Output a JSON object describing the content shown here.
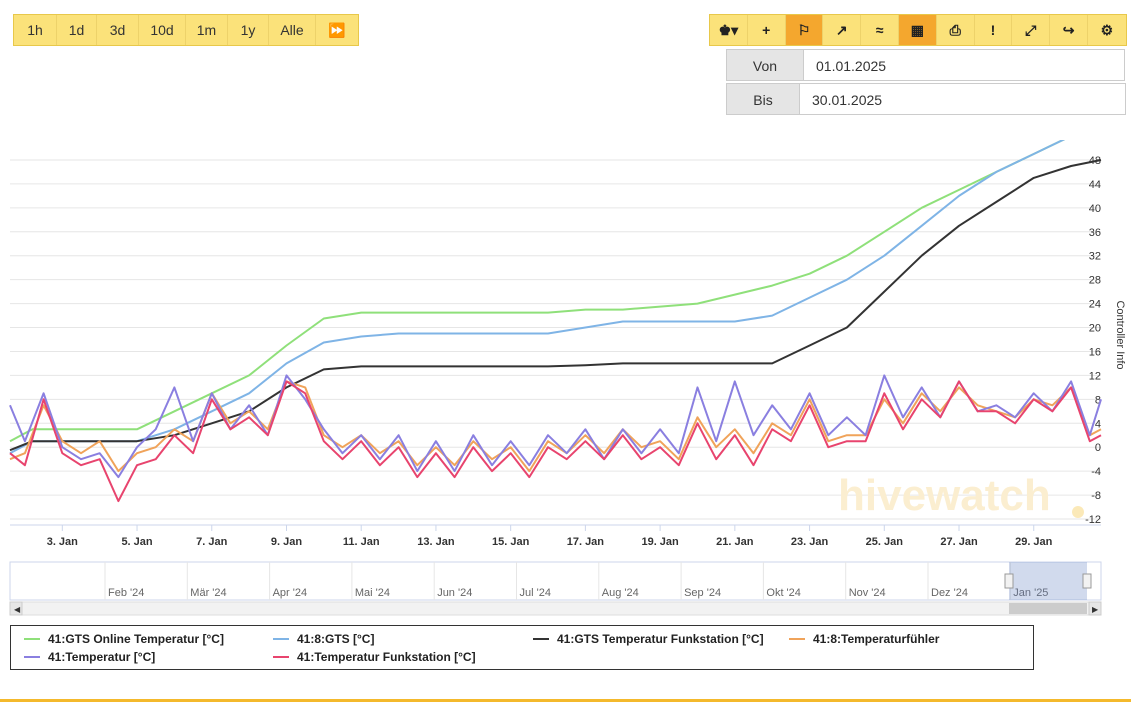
{
  "range_buttons": [
    "1h",
    "1d",
    "3d",
    "10d",
    "1m",
    "1y",
    "Alle"
  ],
  "range_play_icon": "⏩",
  "toolbar": [
    {
      "icon": "bee-menu-icon",
      "glyph": "♚▾",
      "active": false
    },
    {
      "icon": "plus-icon",
      "glyph": "+",
      "active": false
    },
    {
      "icon": "flag-icon",
      "glyph": "⚐",
      "active": true
    },
    {
      "icon": "line-chart-icon",
      "glyph": "↗",
      "active": false
    },
    {
      "icon": "multi-line-icon",
      "glyph": "≈",
      "active": false
    },
    {
      "icon": "calendar-icon",
      "glyph": "▦",
      "active": true
    },
    {
      "icon": "print-icon",
      "glyph": "⎙",
      "active": false
    },
    {
      "icon": "alert-icon",
      "glyph": "!",
      "active": false
    },
    {
      "icon": "fullscreen-icon",
      "glyph": "⤢",
      "active": false
    },
    {
      "icon": "share-icon",
      "glyph": "↪",
      "active": false
    },
    {
      "icon": "gear-icon",
      "glyph": "⚙",
      "active": false
    }
  ],
  "date_range": {
    "from_label": "Von",
    "from_value": "01.01.2025",
    "to_label": "Bis",
    "to_value": "30.01.2025"
  },
  "watermark": "hivewatch",
  "colors": {
    "green": "#8fe07a",
    "blue": "#7fb4e6",
    "black": "#333333",
    "orange": "#f0a35a",
    "purple": "#8a7fe0",
    "red": "#e8446e",
    "accent": "#f4a72e"
  },
  "chart_data": {
    "type": "line",
    "x_ticks": [
      "3. Jan",
      "5. Jan",
      "7. Jan",
      "9. Jan",
      "11. Jan",
      "13. Jan",
      "15. Jan",
      "17. Jan",
      "19. Jan",
      "21. Jan",
      "23. Jan",
      "25. Jan",
      "27. Jan",
      "29. Jan"
    ],
    "y_ticks": [
      -12,
      -8,
      -4,
      0,
      4,
      8,
      12,
      16,
      20,
      24,
      28,
      32,
      36,
      40,
      44,
      48
    ],
    "ylim": [
      -13,
      50
    ],
    "xlim": [
      1.6,
      30.8
    ],
    "right_axis_label": "Controller Info",
    "navigator_labels": [
      "Feb '24",
      "Mär '24",
      "Apr '24",
      "Mai '24",
      "Jun '24",
      "Jul '24",
      "Aug '24",
      "Sep '24",
      "Okt '24",
      "Nov '24",
      "Dez '24",
      "Jan '25"
    ],
    "series": [
      {
        "name": "41:GTS Online Temperatur [°C]",
        "color": "#8fe07a",
        "x": [
          1.6,
          2.2,
          3,
          4,
          5,
          6,
          7,
          8,
          9,
          10,
          11,
          12,
          13,
          14,
          15,
          16,
          17,
          18,
          19,
          20,
          21,
          22,
          23,
          24,
          25,
          26,
          27,
          28,
          29,
          30,
          30.8
        ],
        "y": [
          1,
          3,
          3,
          3,
          3,
          6,
          9,
          12,
          17,
          21.5,
          22.5,
          22.5,
          22.5,
          22.5,
          22.5,
          22.5,
          23,
          23,
          23.5,
          24,
          25.5,
          27,
          29,
          32,
          36,
          40,
          43,
          46,
          49,
          52,
          54
        ]
      },
      {
        "name": "41:8:GTS [°C]",
        "color": "#7fb4e6",
        "x": [
          1.6,
          2.2,
          3,
          4,
          5,
          6,
          7,
          8,
          9,
          10,
          11,
          12,
          13,
          14,
          15,
          16,
          17,
          18,
          19,
          20,
          21,
          22,
          23,
          24,
          25,
          26,
          27,
          28,
          29,
          30,
          30.8
        ],
        "y": [
          -1,
          1,
          1,
          1,
          1,
          3,
          6,
          9,
          14,
          17.5,
          18.5,
          19,
          19,
          19,
          19,
          19,
          20,
          21,
          21,
          21,
          21,
          22,
          25,
          28,
          32,
          37,
          42,
          46,
          49,
          52,
          54
        ]
      },
      {
        "name": "41:GTS Temperatur Funkstation [°C]",
        "color": "#333333",
        "x": [
          1.6,
          2.2,
          3,
          4,
          5,
          6,
          7,
          8,
          9,
          10,
          11,
          12,
          13,
          14,
          15,
          16,
          17,
          18,
          19,
          20,
          21,
          22,
          23,
          24,
          25,
          26,
          27,
          28,
          29,
          30,
          30.8
        ],
        "y": [
          -0.5,
          1,
          1,
          1,
          1,
          2,
          4,
          6,
          10,
          13,
          13.5,
          13.5,
          13.5,
          13.5,
          13.5,
          13.5,
          13.7,
          14,
          14,
          14,
          14,
          14,
          17,
          20,
          26,
          32,
          37,
          41,
          45,
          47,
          48
        ]
      },
      {
        "name": "41:8:Temperaturfühler",
        "color": "#f0a35a",
        "x": [
          1.6,
          2,
          2.5,
          3,
          3.5,
          4,
          4.5,
          5,
          5.5,
          6,
          6.5,
          7,
          7.5,
          8,
          8.5,
          9,
          9.5,
          10,
          10.5,
          11,
          11.5,
          12,
          12.5,
          13,
          13.5,
          14,
          14.5,
          15,
          15.5,
          16,
          16.5,
          17,
          17.5,
          18,
          18.5,
          19,
          19.5,
          20,
          20.5,
          21,
          21.5,
          22,
          22.5,
          23,
          23.5,
          24,
          24.5,
          25,
          25.5,
          26,
          26.5,
          27,
          27.5,
          28,
          28.5,
          29,
          29.5,
          30,
          30.5,
          30.8
        ],
        "y": [
          -2,
          -1,
          7,
          1,
          -1,
          1,
          -4,
          -1,
          0,
          3,
          1,
          9,
          4,
          6,
          3,
          11,
          10,
          2,
          0,
          2,
          -1,
          1,
          -3,
          0,
          -3,
          1,
          -2,
          0,
          -4,
          1,
          -1,
          2,
          -1,
          3,
          0,
          1,
          -2,
          5,
          0,
          3,
          -1,
          4,
          2,
          8,
          1,
          2,
          2,
          8,
          4,
          9,
          6,
          10,
          7,
          6,
          5,
          8,
          7,
          10,
          2,
          3
        ]
      },
      {
        "name": "41:Temperatur [°C]",
        "color": "#8a7fe0",
        "x": [
          1.6,
          2,
          2.5,
          3,
          3.5,
          4,
          4.5,
          5,
          5.5,
          6,
          6.5,
          7,
          7.5,
          8,
          8.5,
          9,
          9.5,
          10,
          10.5,
          11,
          11.5,
          12,
          12.5,
          13,
          13.5,
          14,
          14.5,
          15,
          15.5,
          16,
          16.5,
          17,
          17.5,
          18,
          18.5,
          19,
          19.5,
          20,
          20.5,
          21,
          21.5,
          22,
          22.5,
          23,
          23.5,
          24,
          24.5,
          25,
          25.5,
          26,
          26.5,
          27,
          27.5,
          28,
          28.5,
          29,
          29.5,
          30,
          30.5,
          30.8
        ],
        "y": [
          7,
          1,
          9,
          0,
          -2,
          -1,
          -5,
          0,
          3,
          10,
          1,
          9,
          3,
          7,
          2,
          12,
          8,
          3,
          -1,
          2,
          -2,
          2,
          -4,
          1,
          -4,
          2,
          -3,
          1,
          -3,
          2,
          -1,
          3,
          -2,
          3,
          -1,
          3,
          -1,
          10,
          1,
          11,
          2,
          7,
          3,
          9,
          2,
          5,
          2,
          12,
          5,
          10,
          5,
          11,
          6,
          7,
          5,
          9,
          6,
          11,
          2,
          8
        ]
      },
      {
        "name": "41:Temperatur Funkstation [°C]",
        "color": "#e8446e",
        "x": [
          1.6,
          2,
          2.5,
          3,
          3.5,
          4,
          4.5,
          5,
          5.5,
          6,
          6.5,
          7,
          7.5,
          8,
          8.5,
          9,
          9.5,
          10,
          10.5,
          11,
          11.5,
          12,
          12.5,
          13,
          13.5,
          14,
          14.5,
          15,
          15.5,
          16,
          16.5,
          17,
          17.5,
          18,
          18.5,
          19,
          19.5,
          20,
          20.5,
          21,
          21.5,
          22,
          22.5,
          23,
          23.5,
          24,
          24.5,
          25,
          25.5,
          26,
          26.5,
          27,
          27.5,
          28,
          28.5,
          29,
          29.5,
          30,
          30.5,
          30.8
        ],
        "y": [
          -1,
          -3,
          8,
          -1,
          -3,
          -2,
          -9,
          -3,
          -2,
          2,
          -1,
          8,
          3,
          5,
          2,
          11,
          9,
          1,
          -2,
          1,
          -3,
          0,
          -5,
          -1,
          -5,
          0,
          -4,
          -1,
          -5,
          0,
          -2,
          1,
          -2,
          2,
          -2,
          0,
          -3,
          4,
          -2,
          2,
          -3,
          3,
          1,
          7,
          0,
          1,
          1,
          9,
          3,
          8,
          5,
          11,
          6,
          6,
          4,
          8,
          6,
          10,
          1,
          2
        ]
      }
    ]
  }
}
